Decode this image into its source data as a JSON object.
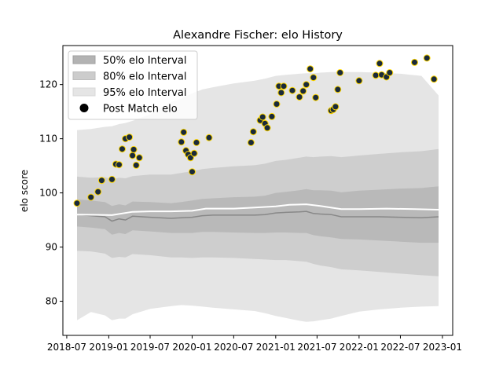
{
  "chart_data": {
    "type": "scatter",
    "title": "Alexandre Fischer: elo History",
    "xlabel": "",
    "ylabel": "elo score",
    "x_axis": "date",
    "xlim": [
      "2018-06-14",
      "2023-02-15"
    ],
    "ylim": [
      73.7,
      127.2
    ],
    "x_ticks": [
      "2018-07",
      "2019-01",
      "2019-07",
      "2020-01",
      "2020-07",
      "2021-01",
      "2021-07",
      "2022-01",
      "2022-07",
      "2023-01"
    ],
    "y_ticks": [
      80,
      90,
      100,
      110,
      120
    ],
    "grid": false,
    "legend": {
      "placement": "top-left",
      "entries": [
        {
          "label": "50% elo Interval",
          "color": "#b3b3b3"
        },
        {
          "label": "80% elo Interval",
          "color": "#cccccc"
        },
        {
          "label": "95% elo Interval",
          "color": "#e5e5e5"
        },
        {
          "label": "Post Match elo",
          "color": "#000000"
        }
      ]
    },
    "bands": {
      "dates": [
        "2018-08-15",
        "2018-10-15",
        "2018-12-15",
        "2019-01-15",
        "2019-02-15",
        "2019-03-15",
        "2019-04-15",
        "2019-07-01",
        "2019-10-01",
        "2019-11-15",
        "2020-01-01",
        "2020-02-15",
        "2020-04-01",
        "2020-07-01",
        "2020-10-01",
        "2020-11-15",
        "2021-01-01",
        "2021-02-15",
        "2021-04-15",
        "2021-05-15",
        "2021-06-15",
        "2021-07-15",
        "2021-09-01",
        "2021-10-15",
        "2022-01-01",
        "2022-04-01",
        "2022-07-01",
        "2022-10-01",
        "2022-12-15"
      ],
      "median": [
        96.0,
        95.8,
        95.6,
        94.8,
        95.2,
        95.0,
        95.7,
        95.5,
        95.3,
        95.4,
        95.5,
        95.8,
        95.9,
        95.9,
        95.9,
        96.0,
        96.3,
        96.4,
        96.5,
        96.6,
        96.2,
        96.1,
        96.0,
        95.6,
        95.6,
        95.6,
        95.5,
        95.4,
        95.6
      ],
      "p50": [
        [
          93.8,
          98.8
        ],
        [
          93.6,
          98.6
        ],
        [
          93.3,
          98.3
        ],
        [
          92.3,
          97.6
        ],
        [
          92.6,
          97.9
        ],
        [
          92.4,
          97.7
        ],
        [
          93.1,
          98.4
        ],
        [
          92.9,
          98.3
        ],
        [
          92.6,
          98.1
        ],
        [
          92.6,
          98.3
        ],
        [
          92.6,
          98.6
        ],
        [
          92.8,
          98.9
        ],
        [
          92.8,
          99.0
        ],
        [
          92.7,
          99.2
        ],
        [
          92.6,
          99.3
        ],
        [
          92.6,
          99.5
        ],
        [
          92.7,
          100.0
        ],
        [
          92.7,
          100.2
        ],
        [
          92.6,
          100.5
        ],
        [
          92.6,
          100.7
        ],
        [
          92.2,
          100.5
        ],
        [
          92.0,
          100.5
        ],
        [
          91.8,
          100.4
        ],
        [
          91.5,
          100.1
        ],
        [
          91.4,
          100.4
        ],
        [
          91.2,
          100.6
        ],
        [
          91.0,
          100.8
        ],
        [
          90.8,
          100.9
        ],
        [
          90.8,
          101.2
        ]
      ],
      "p80": [
        [
          89.3,
          103.0
        ],
        [
          89.2,
          102.8
        ],
        [
          88.8,
          102.9
        ],
        [
          88.0,
          102.5
        ],
        [
          88.2,
          102.8
        ],
        [
          88.1,
          102.7
        ],
        [
          88.7,
          103.1
        ],
        [
          88.5,
          103.4
        ],
        [
          88.1,
          103.4
        ],
        [
          88.1,
          103.7
        ],
        [
          88.0,
          104.0
        ],
        [
          88.1,
          104.4
        ],
        [
          88.1,
          104.6
        ],
        [
          88.0,
          104.9
        ],
        [
          87.8,
          105.1
        ],
        [
          87.7,
          105.4
        ],
        [
          87.6,
          105.9
        ],
        [
          87.6,
          106.1
        ],
        [
          87.4,
          106.5
        ],
        [
          87.3,
          106.7
        ],
        [
          86.9,
          106.6
        ],
        [
          86.6,
          106.7
        ],
        [
          86.3,
          106.8
        ],
        [
          85.9,
          106.6
        ],
        [
          85.7,
          106.9
        ],
        [
          85.4,
          107.2
        ],
        [
          85.1,
          107.5
        ],
        [
          84.8,
          107.7
        ],
        [
          84.6,
          108.1
        ]
      ],
      "p95": [
        [
          76.5,
          111.6
        ],
        [
          78.0,
          111.8
        ],
        [
          77.4,
          112.2
        ],
        [
          76.5,
          112.3
        ],
        [
          76.8,
          112.7
        ],
        [
          76.8,
          112.9
        ],
        [
          77.6,
          113.3
        ],
        [
          78.6,
          114.5
        ],
        [
          79.1,
          116.8
        ],
        [
          79.3,
          117.4
        ],
        [
          79.2,
          118.4
        ],
        [
          79.0,
          119.1
        ],
        [
          78.8,
          119.5
        ],
        [
          78.5,
          120.2
        ],
        [
          78.2,
          120.7
        ],
        [
          77.8,
          121.1
        ],
        [
          77.3,
          121.6
        ],
        [
          76.9,
          121.8
        ],
        [
          76.4,
          122.0
        ],
        [
          76.2,
          122.1
        ],
        [
          76.3,
          122.1
        ],
        [
          76.5,
          122.2
        ],
        [
          76.8,
          122.3
        ],
        [
          77.3,
          122.3
        ],
        [
          78.1,
          122.3
        ],
        [
          78.5,
          122.2
        ],
        [
          78.8,
          122.0
        ],
        [
          79.0,
          121.6
        ],
        [
          79.1,
          118.0
        ]
      ]
    },
    "mean_line": {
      "dates": [
        "2018-08-15",
        "2019-01-15",
        "2019-04-15",
        "2019-07-01",
        "2019-10-01",
        "2020-01-01",
        "2020-03-01",
        "2020-07-01",
        "2020-10-01",
        "2021-01-01",
        "2021-03-01",
        "2021-05-15",
        "2021-07-15",
        "2021-10-15",
        "2022-01-01",
        "2022-05-01",
        "2022-09-01",
        "2022-12-15"
      ],
      "values": [
        96.0,
        95.9,
        96.5,
        96.6,
        96.6,
        96.7,
        97.1,
        97.1,
        97.3,
        97.5,
        97.8,
        97.9,
        97.6,
        97.0,
        97.0,
        97.1,
        97.0,
        96.9
      ]
    },
    "series": [
      {
        "name": "Post Match elo",
        "color": "#1a2a3a",
        "edge_color": "#ffd700",
        "x": [
          "2018-08-15",
          "2018-10-15",
          "2018-11-15",
          "2018-12-01",
          "2019-01-15",
          "2019-02-01",
          "2019-02-15",
          "2019-03-01",
          "2019-03-15",
          "2019-04-01",
          "2019-04-15",
          "2019-04-20",
          "2019-05-01",
          "2019-05-15",
          "2019-11-15",
          "2019-11-25",
          "2019-12-05",
          "2019-12-15",
          "2019-12-25",
          "2020-01-01",
          "2020-01-10",
          "2020-01-20",
          "2020-03-15",
          "2020-09-15",
          "2020-09-25",
          "2020-10-25",
          "2020-11-05",
          "2020-11-15",
          "2020-11-25",
          "2020-12-15",
          "2021-01-05",
          "2021-01-15",
          "2021-01-25",
          "2021-02-05",
          "2021-03-15",
          "2021-04-15",
          "2021-05-01",
          "2021-05-15",
          "2021-06-01",
          "2021-06-15",
          "2021-06-25",
          "2021-09-01",
          "2021-09-10",
          "2021-09-20",
          "2021-09-30",
          "2021-10-10",
          "2022-01-01",
          "2022-03-15",
          "2022-04-01",
          "2022-04-10",
          "2022-05-01",
          "2022-05-15",
          "2022-09-01",
          "2022-10-25",
          "2022-11-25"
        ],
        "y": [
          98.1,
          99.2,
          100.2,
          102.3,
          102.5,
          105.3,
          105.2,
          108.1,
          110.0,
          110.3,
          106.9,
          108.0,
          105.1,
          106.5,
          109.4,
          111.2,
          107.8,
          107.1,
          106.5,
          103.9,
          107.3,
          109.3,
          110.2,
          109.3,
          111.3,
          113.4,
          114.0,
          112.8,
          112.0,
          114.1,
          116.4,
          119.7,
          118.5,
          119.7,
          118.9,
          117.7,
          118.8,
          120.0,
          122.9,
          121.3,
          117.6,
          115.2,
          115.4,
          115.9,
          119.1,
          122.2,
          120.7,
          121.7,
          123.9,
          121.8,
          121.4,
          122.2,
          124.1,
          124.9,
          121.0
        ]
      }
    ]
  }
}
